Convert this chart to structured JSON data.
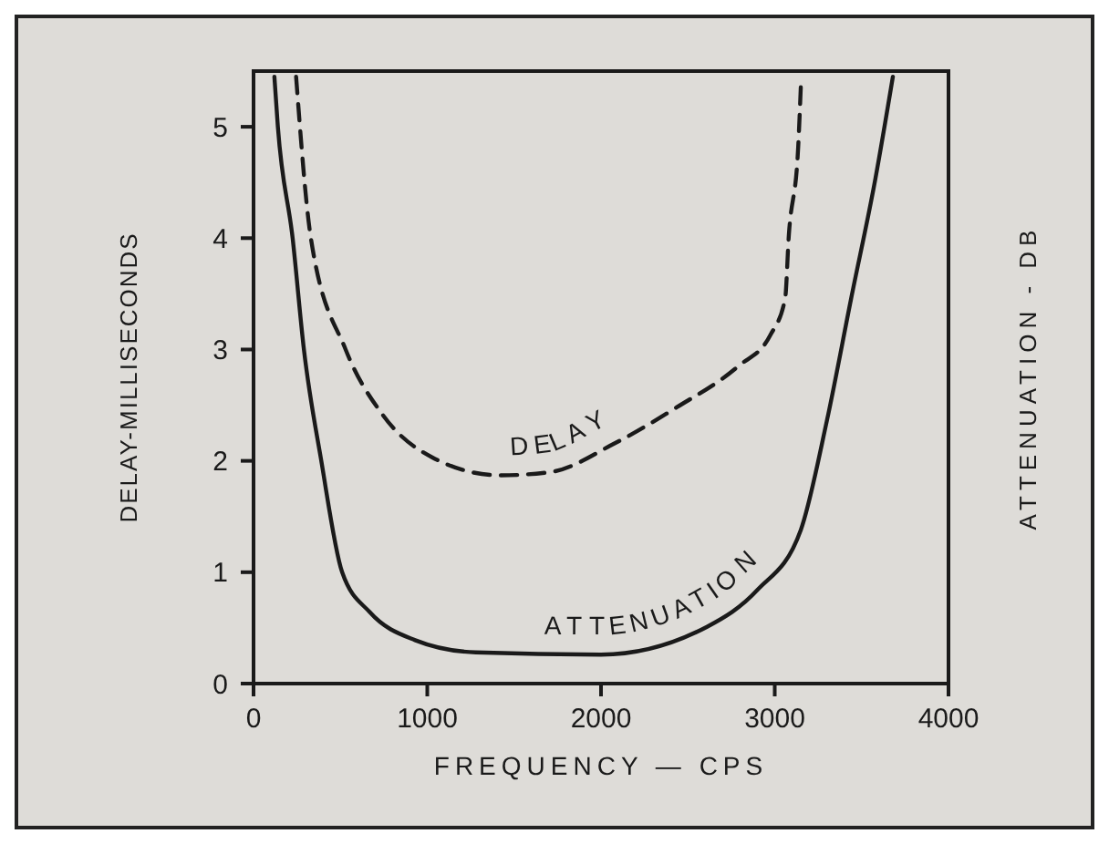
{
  "chart_data": {
    "type": "line",
    "xlabel": "FREQUENCY  —  CPS",
    "ylabel": "DELAY-MILLISECONDS",
    "y2label": "ATTENUATION - DB",
    "xlim": [
      0,
      4000
    ],
    "ylim": [
      0,
      5.5
    ],
    "xticks": [
      0,
      1000,
      2000,
      3000,
      4000
    ],
    "yticks": [
      0,
      1,
      2,
      3,
      4,
      5
    ],
    "grid": false,
    "marker": "none",
    "series": [
      {
        "name": "DELAY",
        "color": "#1a1a1a",
        "line_style": "dashed",
        "x": [
          245,
          330,
          530,
          745,
          1030,
          1420,
          1710,
          2070,
          2435,
          2790,
          2975,
          3060,
          3080,
          3135,
          3150
        ],
        "values": [
          5.45,
          4.0,
          3.0,
          2.41,
          2.03,
          1.87,
          1.9,
          2.15,
          2.48,
          2.85,
          3.13,
          3.46,
          4.0,
          4.82,
          5.36
        ]
      },
      {
        "name": "ATTENUATION",
        "color": "#1a1a1a",
        "line_style": "solid",
        "x": [
          120,
          140,
          225,
          290,
          390,
          510,
          670,
          930,
          1280,
          2000,
          2610,
          2900,
          3150,
          3300,
          3440,
          3580,
          3680
        ],
        "values": [
          5.45,
          5.0,
          4.0,
          3.0,
          2.0,
          1.0,
          0.64,
          0.39,
          0.28,
          0.26,
          0.51,
          0.84,
          1.38,
          2.36,
          3.46,
          4.54,
          5.45
        ]
      }
    ]
  }
}
